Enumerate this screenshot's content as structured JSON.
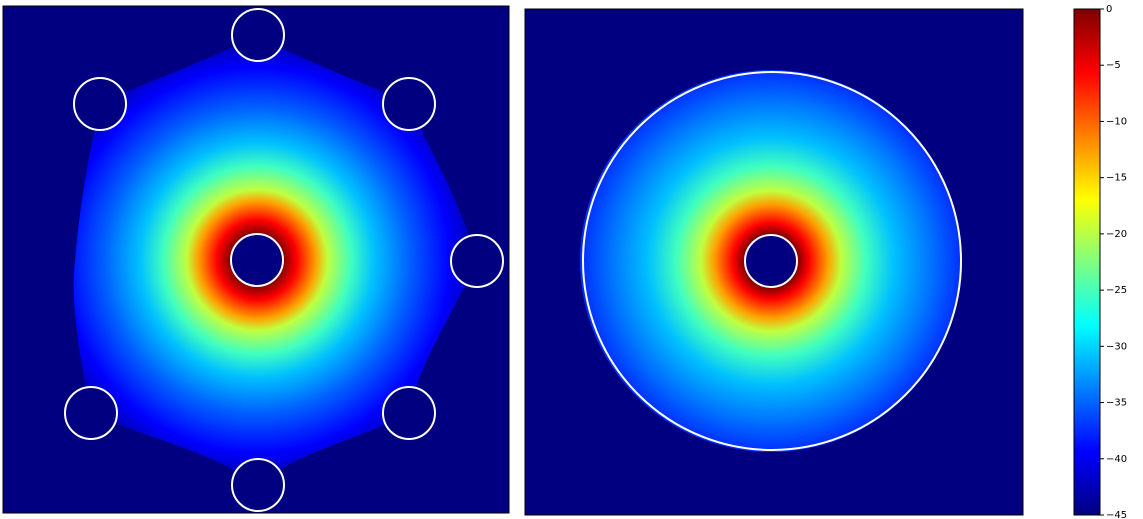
{
  "chart_data": {
    "type": "heatmap",
    "clim": [
      -45,
      0
    ],
    "cticks": [
      0,
      {
        "value": -5,
        "label": "−5"
      },
      {
        "value": -10,
        "label": "−10"
      },
      {
        "value": -15,
        "label": "−15"
      },
      {
        "value": -20,
        "label": "−20"
      },
      {
        "value": -25,
        "label": "−25"
      },
      {
        "value": -30,
        "label": "−30"
      },
      {
        "value": -35,
        "label": "−35"
      },
      {
        "value": -40,
        "label": "−40"
      },
      {
        "value": -45,
        "label": "−45"
      }
    ]
  }
}
